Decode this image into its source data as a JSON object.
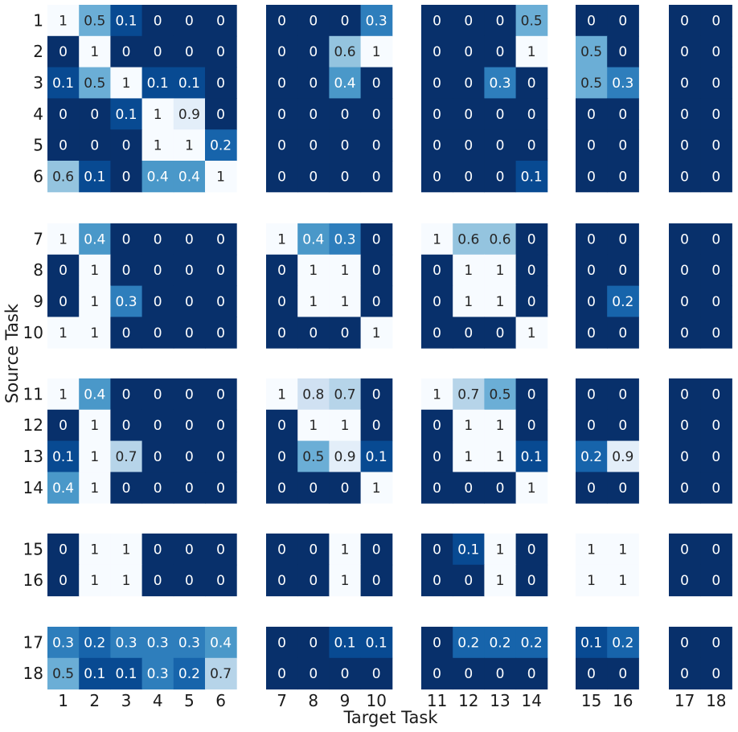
{
  "chart_data": {
    "type": "heatmap",
    "title": "",
    "xlabel": "Target Task",
    "ylabel": "Source Task",
    "colormap": "Blues",
    "color_scale": {
      "low": "#f7fbff",
      "high": "#08306b",
      "stops": [
        "#f7fbff",
        "#deebf7",
        "#c6dbef",
        "#9ecae1",
        "#6baed6",
        "#4292c6",
        "#2171b5",
        "#08519c",
        "#08306b"
      ],
      "note": "value 1 = lightest, value 0 = darkest"
    },
    "value_range": [
      0,
      1
    ],
    "colorbar": false,
    "row_groups": [
      [
        "1",
        "2",
        "3",
        "4",
        "5",
        "6"
      ],
      [
        "7",
        "8",
        "9",
        "10"
      ],
      [
        "11",
        "12",
        "13",
        "14"
      ],
      [
        "15",
        "16"
      ],
      [
        "17",
        "18"
      ]
    ],
    "col_groups": [
      [
        "1",
        "2",
        "3",
        "4",
        "5",
        "6"
      ],
      [
        "7",
        "8",
        "9",
        "10"
      ],
      [
        "11",
        "12",
        "13",
        "14"
      ],
      [
        "15",
        "16"
      ],
      [
        "17",
        "18"
      ]
    ],
    "rows": [
      "1",
      "2",
      "3",
      "4",
      "5",
      "6",
      "7",
      "8",
      "9",
      "10",
      "11",
      "12",
      "13",
      "14",
      "15",
      "16",
      "17",
      "18"
    ],
    "columns": [
      "1",
      "2",
      "3",
      "4",
      "5",
      "6",
      "7",
      "8",
      "9",
      "10",
      "11",
      "12",
      "13",
      "14",
      "15",
      "16",
      "17",
      "18"
    ],
    "values": [
      [
        1,
        0.5,
        0.1,
        0,
        0,
        0,
        0,
        0,
        0,
        0.3,
        0,
        0,
        0,
        0.5,
        0,
        0,
        0,
        0
      ],
      [
        0,
        1,
        0,
        0,
        0,
        0,
        0,
        0,
        0.6,
        1,
        0,
        0,
        0,
        1,
        0.5,
        0,
        0,
        0
      ],
      [
        0.1,
        0.5,
        1,
        0.1,
        0.1,
        0,
        0,
        0,
        0.4,
        0,
        0,
        0,
        0.3,
        0,
        0.5,
        0.3,
        0,
        0
      ],
      [
        0,
        0,
        0.1,
        1,
        0.9,
        0,
        0,
        0,
        0,
        0,
        0,
        0,
        0,
        0,
        0,
        0,
        0,
        0
      ],
      [
        0,
        0,
        0,
        1,
        1,
        0.2,
        0,
        0,
        0,
        0,
        0,
        0,
        0,
        0,
        0,
        0,
        0,
        0
      ],
      [
        0.6,
        0.1,
        0,
        0.4,
        0.4,
        1,
        0,
        0,
        0,
        0,
        0,
        0,
        0,
        0.1,
        0,
        0,
        0,
        0
      ],
      [
        1,
        0.4,
        0,
        0,
        0,
        0,
        1,
        0.4,
        0.3,
        0,
        1,
        0.6,
        0.6,
        0,
        0,
        0,
        0,
        0
      ],
      [
        0,
        1,
        0,
        0,
        0,
        0,
        0,
        1,
        1,
        0,
        0,
        1,
        1,
        0,
        0,
        0,
        0,
        0
      ],
      [
        0,
        1,
        0.3,
        0,
        0,
        0,
        0,
        1,
        1,
        0,
        0,
        1,
        1,
        0,
        0,
        0.2,
        0,
        0
      ],
      [
        1,
        1,
        0,
        0,
        0,
        0,
        0,
        0,
        0,
        1,
        0,
        0,
        0,
        1,
        0,
        0,
        0,
        0
      ],
      [
        1,
        0.4,
        0,
        0,
        0,
        0,
        1,
        0.8,
        0.7,
        0,
        1,
        0.7,
        0.5,
        0,
        0,
        0,
        0,
        0
      ],
      [
        0,
        1,
        0,
        0,
        0,
        0,
        0,
        1,
        1,
        0,
        0,
        1,
        1,
        0,
        0,
        0,
        0,
        0
      ],
      [
        0.1,
        1,
        0.7,
        0,
        0,
        0,
        0,
        0.5,
        0.9,
        0.1,
        0,
        1,
        1,
        0.1,
        0.2,
        0.9,
        0,
        0
      ],
      [
        0.4,
        1,
        0,
        0,
        0,
        0,
        0,
        0,
        0,
        1,
        0,
        0,
        0,
        1,
        0,
        0,
        0,
        0
      ],
      [
        0,
        1,
        1,
        0,
        0,
        0,
        0,
        0,
        1,
        0,
        0,
        0.1,
        1,
        0,
        1,
        1,
        0,
        0
      ],
      [
        0,
        1,
        1,
        0,
        0,
        0,
        0,
        0,
        1,
        0,
        0,
        0,
        1,
        0,
        1,
        1,
        0,
        0
      ],
      [
        0.3,
        0.2,
        0.3,
        0.3,
        0.3,
        0.4,
        0,
        0,
        0.1,
        0.1,
        0,
        0.2,
        0.2,
        0.2,
        0.1,
        0.2,
        0,
        0
      ],
      [
        0.5,
        0.1,
        0.1,
        0.3,
        0.2,
        0.7,
        0,
        0,
        0,
        0,
        0,
        0,
        0,
        0,
        0,
        0,
        0,
        0
      ]
    ]
  }
}
